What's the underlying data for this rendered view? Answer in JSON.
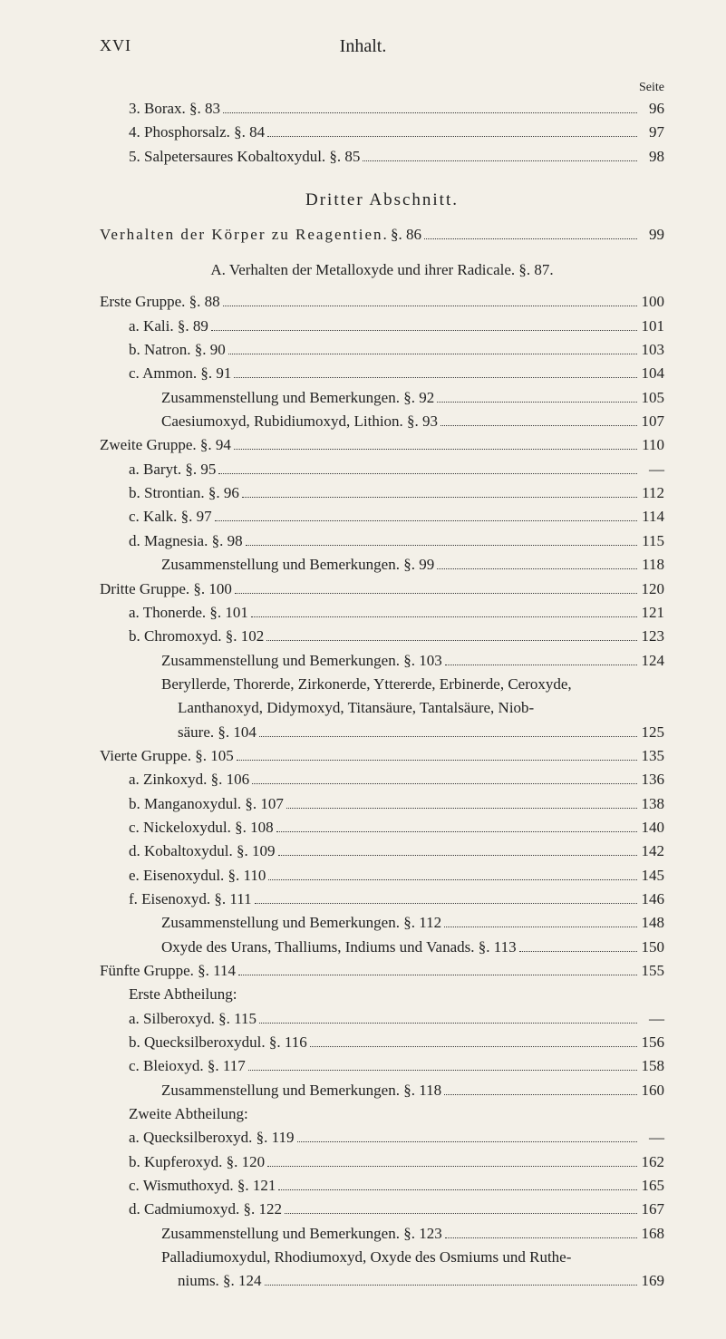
{
  "header": {
    "page_roman": "XVI",
    "title": "Inhalt.",
    "seite_label": "Seite"
  },
  "pre_section": [
    {
      "indent": 1,
      "text": "3. Borax. §. 83",
      "page": "96"
    },
    {
      "indent": 1,
      "text": "4. Phosphorsalz. §. 84",
      "page": "97"
    },
    {
      "indent": 1,
      "text": "5. Salpetersaures Kobaltoxydul. §. 85",
      "page": "98"
    }
  ],
  "section_title": "Dritter Abschnitt.",
  "verhalten_line": {
    "text_a": "Verhalten der Körper zu Reagentien",
    "text_b": ". §. 86",
    "page": "99"
  },
  "sub_heading": "A. Verhalten der Metalloxyde und ihrer Radicale. §. 87.",
  "main_lines": [
    {
      "indent": 0,
      "text": "Erste Gruppe. §. 88",
      "page": "100"
    },
    {
      "indent": 1,
      "text": "a. Kali. §. 89",
      "page": "101"
    },
    {
      "indent": 1,
      "text": "b. Natron. §. 90",
      "page": "103"
    },
    {
      "indent": 1,
      "text": "c. Ammon. §. 91",
      "page": "104"
    },
    {
      "indent": 2,
      "text": "Zusammenstellung und Bemerkungen. §. 92",
      "page": "105"
    },
    {
      "indent": 2,
      "text": "Caesiumoxyd, Rubidiumoxyd, Lithion. §. 93",
      "page": "107"
    },
    {
      "indent": 0,
      "text": "Zweite Gruppe. §. 94",
      "page": "110"
    },
    {
      "indent": 1,
      "text": "a. Baryt. §. 95",
      "page": "—"
    },
    {
      "indent": 1,
      "text": "b. Strontian. §. 96",
      "page": "112"
    },
    {
      "indent": 1,
      "text": "c. Kalk. §. 97",
      "page": "114"
    },
    {
      "indent": 1,
      "text": "d. Magnesia. §. 98",
      "page": "115"
    },
    {
      "indent": 2,
      "text": "Zusammenstellung und Bemerkungen. §. 99",
      "page": "118"
    },
    {
      "indent": 0,
      "text": "Dritte Gruppe. §. 100",
      "page": "120"
    },
    {
      "indent": 1,
      "text": "a. Thonerde. §. 101",
      "page": "121"
    },
    {
      "indent": 1,
      "text": "b. Chromoxyd. §. 102",
      "page": "123"
    },
    {
      "indent": 2,
      "text": "Zusammenstellung und Bemerkungen. §. 103",
      "page": "124"
    },
    {
      "indent": 2,
      "text_multi": [
        "Beryllerde, Thorerde, Zirkonerde, Yttererde, Erbinerde, Ceroxyde,",
        "Lanthanoxyd, Didymoxyd, Titansäure, Tantalsäure, Niob-",
        "säure. §. 104"
      ],
      "page": "125"
    },
    {
      "indent": 0,
      "text": "Vierte Gruppe. §. 105",
      "page": "135"
    },
    {
      "indent": 1,
      "text": "a. Zinkoxyd. §. 106",
      "page": "136"
    },
    {
      "indent": 1,
      "text": "b. Manganoxydul. §. 107",
      "page": "138"
    },
    {
      "indent": 1,
      "text": "c. Nickeloxydul. §. 108",
      "page": "140"
    },
    {
      "indent": 1,
      "text": "d. Kobaltoxydul. §. 109",
      "page": "142"
    },
    {
      "indent": 1,
      "text": "e. Eisenoxydul. §. 110",
      "page": "145"
    },
    {
      "indent": 1,
      "text": "f. Eisenoxyd. §. 111",
      "page": "146"
    },
    {
      "indent": 2,
      "text": "Zusammenstellung und Bemerkungen. §. 112",
      "page": "148"
    },
    {
      "indent": 2,
      "text": "Oxyde des Urans, Thalliums, Indiums und Vanads. §. 113",
      "page": "150"
    },
    {
      "indent": 0,
      "text": "Fünfte Gruppe. §. 114",
      "page": "155"
    },
    {
      "indent": 1,
      "text_plain": "Erste Abtheilung:"
    },
    {
      "indent": 1,
      "text": "a. Silberoxyd. §. 115",
      "page": "—"
    },
    {
      "indent": 1,
      "text": "b. Quecksilberoxydul. §. 116",
      "page": "156"
    },
    {
      "indent": 1,
      "text": "c. Bleioxyd. §. 117",
      "page": "158"
    },
    {
      "indent": 2,
      "text": "Zusammenstellung und Bemerkungen. §. 118",
      "page": "160"
    },
    {
      "indent": 1,
      "text_plain": "Zweite Abtheilung:"
    },
    {
      "indent": 1,
      "text": "a. Quecksilberoxyd. §. 119",
      "page": "—"
    },
    {
      "indent": 1,
      "text": "b. Kupferoxyd. §. 120",
      "page": "162"
    },
    {
      "indent": 1,
      "text": "c. Wismuthoxyd. §. 121",
      "page": "165"
    },
    {
      "indent": 1,
      "text": "d. Cadmiumoxyd. §. 122",
      "page": "167"
    },
    {
      "indent": 2,
      "text": "Zusammenstellung und Bemerkungen. §. 123",
      "page": "168"
    },
    {
      "indent": 2,
      "text_multi": [
        "Palladiumoxydul, Rhodiumoxyd, Oxyde des Osmiums und Ruthe-",
        "niums. §. 124"
      ],
      "page": "169"
    }
  ]
}
